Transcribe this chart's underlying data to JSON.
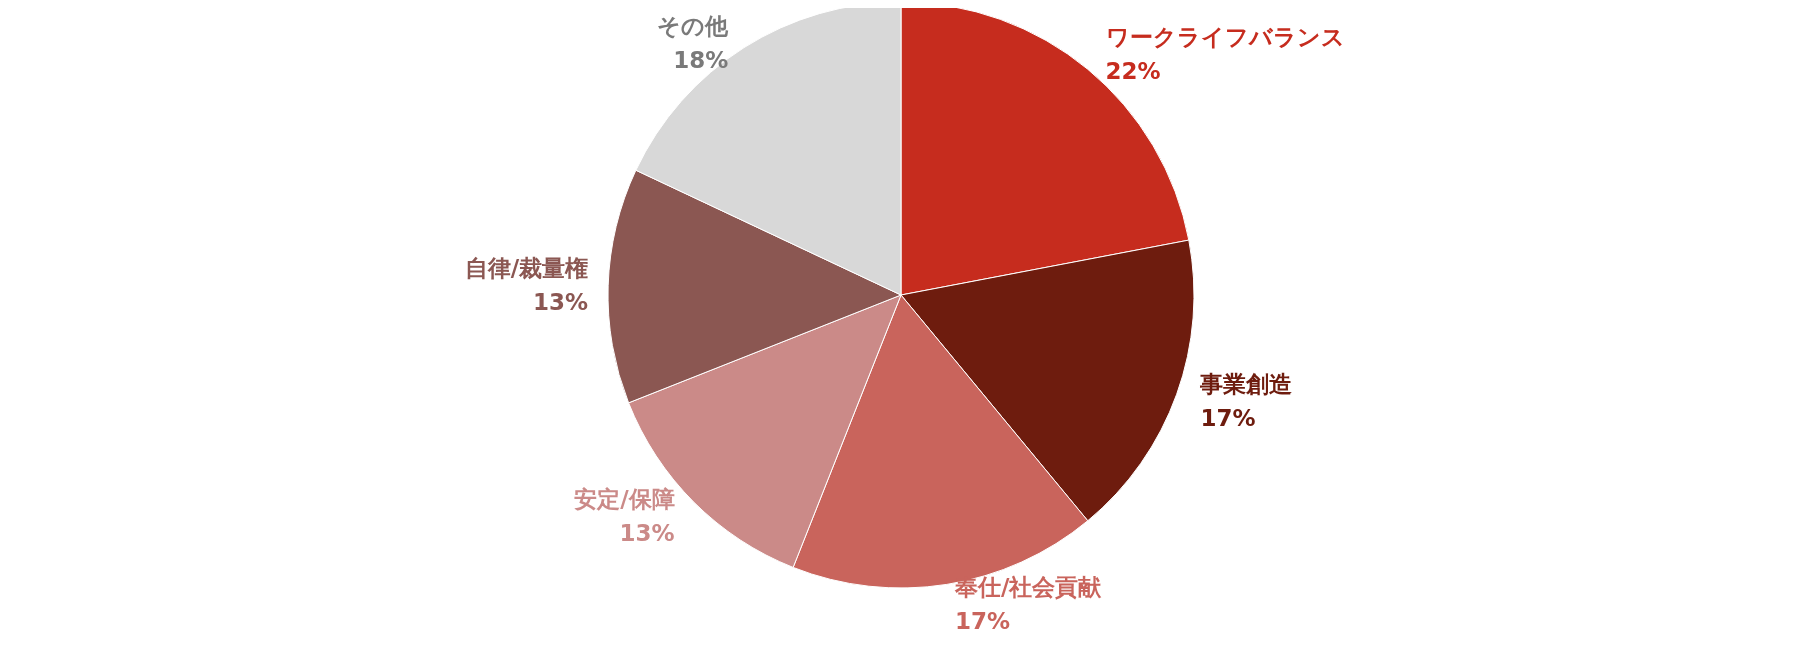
{
  "chart_data": {
    "type": "pie",
    "categories": [
      "ワークライフバランス",
      "事業創造",
      "奉仕/社会貢献",
      "安定/保障",
      "自律/裁量権",
      "その他"
    ],
    "values": [
      22,
      17,
      17,
      13,
      13,
      18
    ],
    "value_labels": [
      "22%",
      "17%",
      "17%",
      "13%",
      "13%",
      "18%"
    ],
    "colors": [
      "#c62c1e",
      "#6e1c0e",
      "#c9645c",
      "#cb8a88",
      "#8b5752",
      "#d8d8d8"
    ],
    "legend": false
  }
}
